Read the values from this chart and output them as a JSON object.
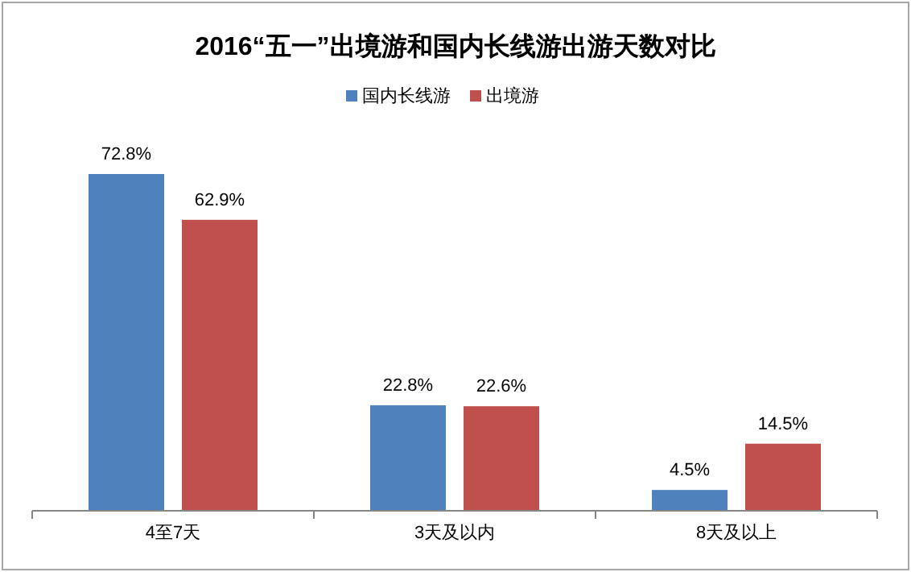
{
  "chart_data": {
    "type": "bar",
    "title": "2016“五一”出境游和国内长线游出游天数对比",
    "categories": [
      "4至7天",
      "3天及以内",
      "8天及以上"
    ],
    "series": [
      {
        "name": "国内长线游",
        "color": "#4f81bd",
        "values": [
          72.8,
          22.8,
          4.5
        ],
        "value_labels": [
          "72.8%",
          "22.8%",
          "4.5%"
        ]
      },
      {
        "name": "出境游",
        "color": "#c0504d",
        "values": [
          62.9,
          22.6,
          14.5
        ],
        "value_labels": [
          "62.9%",
          "22.6%",
          "14.5%"
        ]
      }
    ],
    "legend": "top right"
  }
}
